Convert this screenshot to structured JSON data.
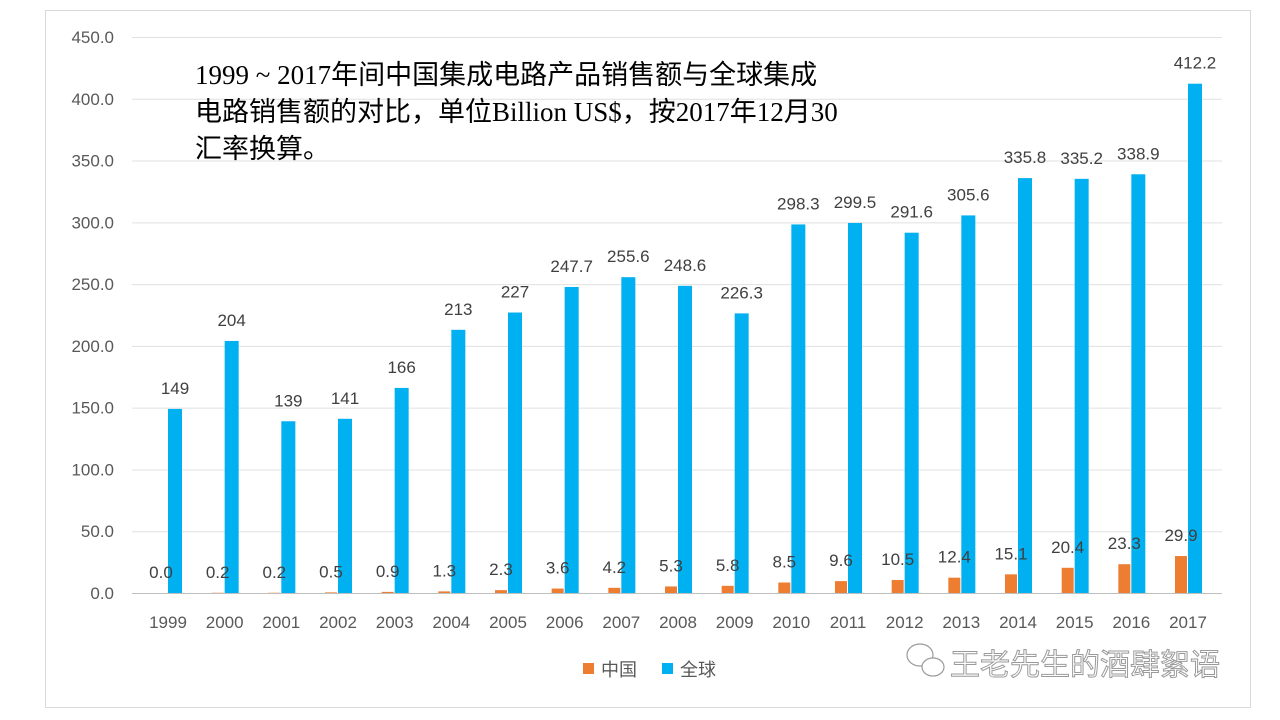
{
  "chart_data": {
    "type": "bar",
    "title_lines": [
      "1999 ~ 2017年间中国集成电路产品销售额与全球集成",
      "电路销售额的对比，单位Billion US$，按2017年12月30",
      "汇率换算。"
    ],
    "categories": [
      "1999",
      "2000",
      "2001",
      "2002",
      "2003",
      "2004",
      "2005",
      "2006",
      "2007",
      "2008",
      "2009",
      "2010",
      "2011",
      "2012",
      "2013",
      "2014",
      "2015",
      "2016",
      "2017"
    ],
    "series": [
      {
        "name": "中国",
        "color": "#ED7D31",
        "values": [
          0.0,
          0.2,
          0.2,
          0.5,
          0.9,
          1.3,
          2.3,
          3.6,
          4.2,
          5.3,
          5.8,
          8.5,
          9.6,
          10.5,
          12.4,
          15.1,
          20.4,
          23.3,
          29.9
        ],
        "labels": [
          "0.0",
          "0.2",
          "0.2",
          "0.5",
          "0.9",
          "1.3",
          "2.3",
          "3.6",
          "4.2",
          "5.3",
          "5.8",
          "8.5",
          "9.6",
          "10.5",
          "12.4",
          "15.1",
          "20.4",
          "23.3",
          "29.9"
        ]
      },
      {
        "name": "全球",
        "color": "#00B0F0",
        "values": [
          149,
          204,
          139,
          141,
          166,
          213,
          227,
          247.7,
          255.6,
          248.6,
          226.3,
          298.3,
          299.5,
          291.6,
          305.6,
          335.8,
          335.2,
          338.9,
          412.2
        ],
        "labels": [
          "149",
          "204",
          "139",
          "141",
          "166",
          "213",
          "227",
          "247.7",
          "255.6",
          "248.6",
          "226.3",
          "298.3",
          "299.5",
          "291.6",
          "305.6",
          "335.8",
          "335.2",
          "338.9",
          "412.2"
        ]
      }
    ],
    "yticks": [
      "0.0",
      "50.0",
      "100.0",
      "150.0",
      "200.0",
      "250.0",
      "300.0",
      "350.0",
      "400.0",
      "450.0"
    ],
    "ylim": [
      0,
      450
    ],
    "grid": true,
    "legend_position": "bottom",
    "xlabel": "",
    "ylabel": ""
  },
  "watermark": "王老先生的酒肆絮语"
}
